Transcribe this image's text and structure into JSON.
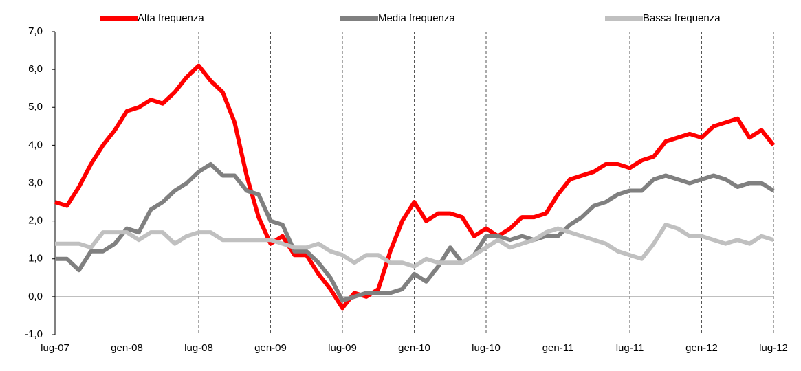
{
  "chart_data": {
    "type": "line",
    "categories": [
      "lug-07",
      null,
      null,
      null,
      null,
      null,
      "gen-08",
      null,
      null,
      null,
      null,
      null,
      "lug-08",
      null,
      null,
      null,
      null,
      null,
      "gen-09",
      null,
      null,
      null,
      null,
      null,
      "lug-09",
      null,
      null,
      null,
      null,
      null,
      "gen-10",
      null,
      null,
      null,
      null,
      null,
      "lug-10",
      null,
      null,
      null,
      null,
      null,
      "gen-11",
      null,
      null,
      null,
      null,
      null,
      "lug-11",
      null,
      null,
      null,
      null,
      null,
      "gen-12",
      null,
      null,
      null,
      null,
      null,
      "lug-12"
    ],
    "series": [
      {
        "name": "Alta frequenza",
        "color": "#ff0000",
        "values": [
          2.5,
          2.4,
          2.9,
          3.5,
          4.0,
          4.4,
          4.9,
          5.0,
          5.2,
          5.1,
          5.4,
          5.8,
          6.1,
          5.7,
          5.4,
          4.6,
          3.2,
          2.1,
          1.4,
          1.6,
          1.1,
          1.1,
          0.6,
          0.2,
          -0.3,
          0.1,
          0.0,
          0.2,
          1.2,
          2.0,
          2.5,
          2.0,
          2.2,
          2.2,
          2.1,
          1.6,
          1.8,
          1.6,
          1.8,
          2.1,
          2.1,
          2.2,
          2.7,
          3.1,
          3.2,
          3.3,
          3.5,
          3.5,
          3.4,
          3.6,
          3.7,
          4.1,
          4.2,
          4.3,
          4.2,
          4.5,
          4.6,
          4.7,
          4.2,
          4.4,
          4.0
        ]
      },
      {
        "name": "Media frequenza",
        "color": "#808080",
        "values": [
          1.0,
          1.0,
          0.7,
          1.2,
          1.2,
          1.4,
          1.8,
          1.7,
          2.3,
          2.5,
          2.8,
          3.0,
          3.3,
          3.5,
          3.2,
          3.2,
          2.8,
          2.7,
          2.0,
          1.9,
          1.2,
          1.2,
          0.9,
          0.5,
          -0.1,
          0.0,
          0.1,
          0.1,
          0.1,
          0.2,
          0.6,
          0.4,
          0.8,
          1.3,
          0.9,
          1.1,
          1.6,
          1.6,
          1.5,
          1.6,
          1.5,
          1.6,
          1.6,
          1.9,
          2.1,
          2.4,
          2.5,
          2.7,
          2.8,
          2.8,
          3.1,
          3.2,
          3.1,
          3.0,
          3.1,
          3.2,
          3.1,
          2.9,
          3.0,
          3.0,
          2.8
        ]
      },
      {
        "name": "Bassa frequenza",
        "color": "#c0c0c0",
        "values": [
          1.4,
          1.4,
          1.4,
          1.3,
          1.7,
          1.7,
          1.7,
          1.5,
          1.7,
          1.7,
          1.4,
          1.6,
          1.7,
          1.7,
          1.5,
          1.5,
          1.5,
          1.5,
          1.5,
          1.4,
          1.3,
          1.3,
          1.4,
          1.2,
          1.1,
          0.9,
          1.1,
          1.1,
          0.9,
          0.9,
          0.8,
          1.0,
          0.9,
          0.9,
          0.9,
          1.1,
          1.3,
          1.5,
          1.3,
          1.4,
          1.5,
          1.7,
          1.8,
          1.7,
          1.6,
          1.5,
          1.4,
          1.2,
          1.1,
          1.0,
          1.4,
          1.9,
          1.8,
          1.6,
          1.6,
          1.5,
          1.4,
          1.5,
          1.4,
          1.6,
          1.5
        ]
      }
    ],
    "ylim": [
      -1,
      7
    ],
    "yticks": [
      {
        "value": -1,
        "label": "-1,0"
      },
      {
        "value": 0,
        "label": "0,0"
      },
      {
        "value": 1,
        "label": "1,0"
      },
      {
        "value": 2,
        "label": "2,0"
      },
      {
        "value": 3,
        "label": "3,0"
      },
      {
        "value": 4,
        "label": "4,0"
      },
      {
        "value": 5,
        "label": "5,0"
      },
      {
        "value": 6,
        "label": "6,0"
      },
      {
        "value": 7,
        "label": "7,0"
      }
    ],
    "grid": true
  }
}
